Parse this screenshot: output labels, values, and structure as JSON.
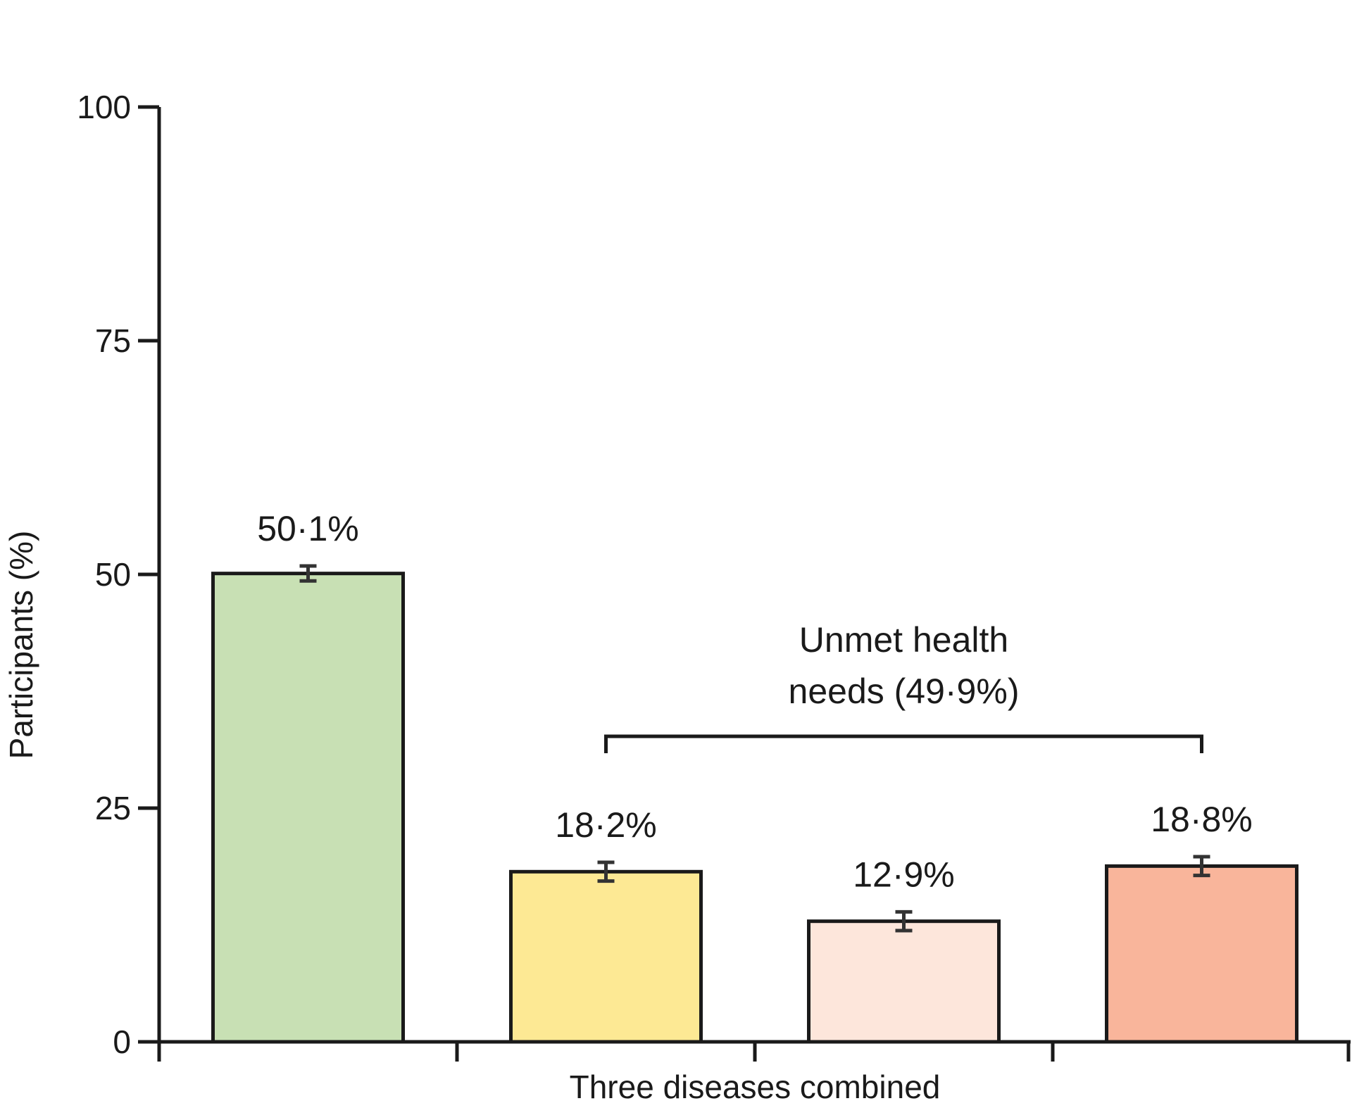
{
  "chart_data": {
    "type": "bar",
    "xlabel": "Three diseases combined",
    "ylabel": "Participants (%)",
    "ylim": [
      0,
      100
    ],
    "yticks": [
      "0",
      "25",
      "50",
      "75",
      "100"
    ],
    "grid": false,
    "bars": [
      {
        "value": 50.1,
        "label": "50·1%",
        "error": [
          49.3,
          50.9
        ],
        "color": "#c8e0b4"
      },
      {
        "value": 18.2,
        "label": "18·2%",
        "error": [
          17.2,
          19.2
        ],
        "color": "#fde994"
      },
      {
        "value": 12.9,
        "label": "12·9%",
        "error": [
          11.9,
          13.9
        ],
        "color": "#fde6db"
      },
      {
        "value": 18.8,
        "label": "18·8%",
        "error": [
          17.8,
          19.8
        ],
        "color": "#f9b59b"
      }
    ],
    "annotation": {
      "line1": "Unmet health",
      "line2": "needs (49·9%)",
      "span": [
        1,
        3
      ]
    }
  }
}
